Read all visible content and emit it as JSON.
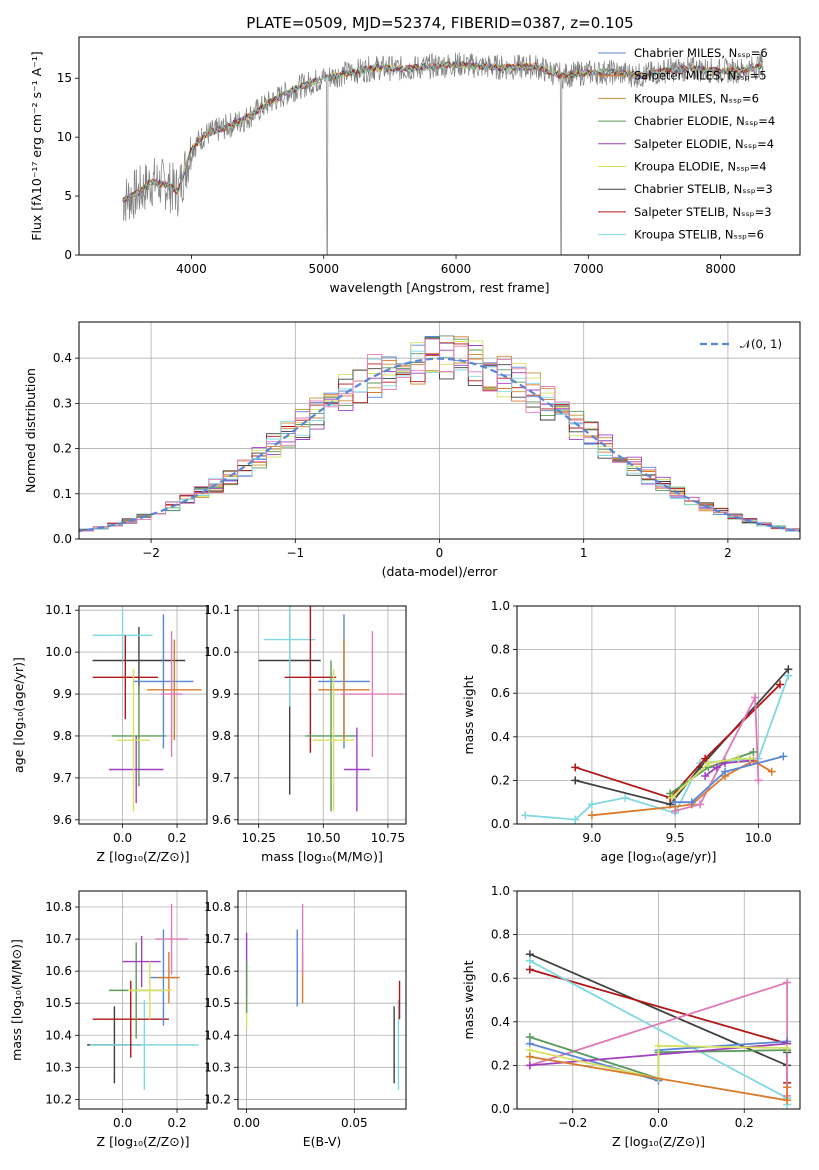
{
  "page_title": "PLATE=0509, MJD=52374, FIBERID=0387, z=0.105",
  "chart_data": [
    {
      "id": "spectrum",
      "type": "line",
      "title": "PLATE=0509, MJD=52374, FIBERID=0387, z=0.105",
      "xlabel": "wavelength [Angstrom, rest frame]",
      "ylabel": "Flux [fλ10⁻¹⁷ erg cm⁻² s⁻¹ A⁻¹]",
      "xlim": [
        3150,
        8600
      ],
      "ylim": [
        0,
        18.5
      ],
      "xticks": [
        4000,
        5000,
        6000,
        7000,
        8000
      ],
      "yticks": [
        0,
        5,
        10,
        15
      ],
      "grid": false,
      "legend_position": "upper right",
      "continuum": {
        "x": [
          3480,
          3600,
          3700,
          3800,
          3900,
          4000,
          4100,
          4200,
          4400,
          4600,
          4800,
          5000,
          5200,
          5400,
          5600,
          5800,
          6000,
          6200,
          6400,
          6600,
          6800,
          7000,
          7200,
          7400,
          7600,
          7800,
          8000,
          8200,
          8320
        ],
        "y": [
          4.6,
          5.3,
          6.2,
          6.0,
          5.4,
          9.0,
          10.2,
          10.6,
          11.5,
          13.0,
          14.2,
          15.0,
          15.5,
          15.9,
          15.8,
          16.0,
          16.2,
          16.0,
          15.9,
          16.0,
          15.2,
          15.5,
          15.5,
          15.2,
          15.7,
          15.8,
          15.6,
          15.7,
          16.2
        ]
      },
      "series": [
        {
          "name": "Chabrier MILES, Nₛₛₚ=6",
          "color": "#5a86d6"
        },
        {
          "name": "Salpeter MILES, Nₛₛₚ=5",
          "color": "#d97b2d"
        },
        {
          "name": "Kroupa MILES, Nₛₛₚ=6",
          "color": "#c8903a"
        },
        {
          "name": "Chabrier ELODIE, Nₛₛₚ=4",
          "color": "#5a9a5a"
        },
        {
          "name": "Salpeter ELODIE, Nₛₛₚ=4",
          "color": "#a040c0"
        },
        {
          "name": "Kroupa ELODIE, Nₛₛₚ=4",
          "color": "#d8e060"
        },
        {
          "name": "Chabrier STELIB, Nₛₛₚ=3",
          "color": "#404040"
        },
        {
          "name": "Salpeter STELIB, Nₛₛₚ=3",
          "color": "#b01818"
        },
        {
          "name": "Kroupa STELIB, Nₛₛₚ=6",
          "color": "#80d8e0"
        }
      ]
    },
    {
      "id": "residuals",
      "type": "line",
      "xlabel": "(data-model)/error",
      "ylabel": "Normed distribution",
      "xlim": [
        -2.5,
        2.5
      ],
      "ylim": [
        0,
        0.48
      ],
      "xticks": [
        -2,
        -1,
        0,
        1,
        2
      ],
      "yticks": [
        0.0,
        0.1,
        0.2,
        0.3,
        0.4
      ],
      "grid": true,
      "legend_position": "upper right",
      "gaussian_label": "𝒩(0, 1)",
      "gaussian_color": "#5a86d6"
    },
    {
      "id": "age_vs_Z",
      "type": "scatter",
      "xlabel": "Z [log₁₀(Z/Z⊙)]",
      "ylabel": "age  [log₁₀(age/yr)]",
      "xlim": [
        -0.16,
        0.31
      ],
      "ylim": [
        9.59,
        10.11
      ],
      "xticks": [
        0.0,
        0.2
      ],
      "xticklabels": [
        "0.0",
        "0.2"
      ],
      "yticks": [
        9.6,
        9.7,
        9.8,
        9.9,
        10.0,
        10.1
      ],
      "points": [
        {
          "x": 0.06,
          "y": 9.98,
          "xerr": 0.17,
          "yerr": 0.08,
          "color": "#404040"
        },
        {
          "x": 0.0,
          "y": 10.04,
          "xerr": 0.11,
          "yerr": 0.06,
          "color": "#80d8e0"
        },
        {
          "x": 0.01,
          "y": 9.94,
          "xerr": 0.12,
          "yerr": 0.1,
          "color": "#b01818"
        },
        {
          "x": 0.06,
          "y": 9.8,
          "xerr": 0.1,
          "yerr": 0.12,
          "color": "#5a9a5a"
        },
        {
          "x": 0.05,
          "y": 9.72,
          "xerr": 0.1,
          "yerr": 0.08,
          "color": "#a040c0"
        },
        {
          "x": 0.15,
          "y": 9.93,
          "xerr": 0.11,
          "yerr": 0.16,
          "color": "#5a86d6"
        },
        {
          "x": 0.19,
          "y": 9.91,
          "xerr": 0.1,
          "yerr": 0.12,
          "color": "#d97b2d"
        },
        {
          "x": 0.18,
          "y": 9.9,
          "xerr": 0.04,
          "yerr": 0.15,
          "color": "#e07ab8"
        },
        {
          "x": 0.04,
          "y": 9.79,
          "xerr": 0.06,
          "yerr": 0.17,
          "color": "#d8e060"
        }
      ]
    },
    {
      "id": "age_vs_mass",
      "type": "scatter",
      "xlabel": "mass [log₁₀(M/M⊙)]",
      "xlim": [
        10.17,
        10.82
      ],
      "ylim": [
        9.59,
        10.11
      ],
      "xticks": [
        10.25,
        10.5,
        10.75
      ],
      "xticklabels": [
        "10.25",
        "10.50",
        "10.75"
      ],
      "yticks": [
        9.6,
        9.7,
        9.8,
        9.9,
        10.0,
        10.1
      ],
      "points": [
        {
          "x": 10.37,
          "y": 9.98,
          "xerr": 0.12,
          "yerr": 0.32,
          "color": "#404040"
        },
        {
          "x": 10.37,
          "y": 10.03,
          "xerr": 0.1,
          "yerr": 0.16,
          "color": "#80d8e0"
        },
        {
          "x": 10.45,
          "y": 9.94,
          "xerr": 0.1,
          "yerr": 0.18,
          "color": "#b01818"
        },
        {
          "x": 10.53,
          "y": 9.8,
          "xerr": 0.1,
          "yerr": 0.18,
          "color": "#5a9a5a"
        },
        {
          "x": 10.63,
          "y": 9.72,
          "xerr": 0.05,
          "yerr": 0.1,
          "color": "#a040c0"
        },
        {
          "x": 10.58,
          "y": 9.93,
          "xerr": 0.1,
          "yerr": 0.16,
          "color": "#5a86d6"
        },
        {
          "x": 10.58,
          "y": 9.91,
          "xerr": 0.1,
          "yerr": 0.12,
          "color": "#d97b2d"
        },
        {
          "x": 10.69,
          "y": 9.9,
          "xerr": 0.12,
          "yerr": 0.15,
          "color": "#e07ab8"
        },
        {
          "x": 10.54,
          "y": 9.79,
          "xerr": 0.08,
          "yerr": 0.17,
          "color": "#d8e060"
        }
      ]
    },
    {
      "id": "mass_weight_vs_age",
      "type": "line",
      "xlabel": "age  [log₁₀(age/yr)]",
      "ylabel": "mass weight",
      "xlim": [
        8.55,
        10.25
      ],
      "ylim": [
        0,
        1.0
      ],
      "xticks": [
        9.0,
        9.5,
        10.0
      ],
      "yticks": [
        0.0,
        0.2,
        0.4,
        0.6,
        0.8,
        1.0
      ],
      "grid": true,
      "series": [
        {
          "color": "#80d8e0",
          "x": [
            8.6,
            8.9,
            9.0,
            9.2,
            9.5,
            9.65,
            9.8,
            10.0,
            10.18
          ],
          "y": [
            0.04,
            0.02,
            0.09,
            0.12,
            0.05,
            0.28,
            0.29,
            0.3,
            0.68
          ]
        },
        {
          "color": "#404040",
          "x": [
            8.9,
            9.47,
            9.65,
            10.18
          ],
          "y": [
            0.2,
            0.09,
            0.26,
            0.71
          ]
        },
        {
          "color": "#b01818",
          "x": [
            8.9,
            9.47,
            9.68,
            10.13
          ],
          "y": [
            0.26,
            0.12,
            0.3,
            0.64
          ]
        },
        {
          "color": "#e07ab8",
          "x": [
            9.5,
            9.65,
            9.98,
            10.0
          ],
          "y": [
            0.06,
            0.09,
            0.58,
            0.2
          ]
        },
        {
          "color": "#d97b2d",
          "x": [
            9.0,
            9.5,
            9.6,
            9.8,
            9.97,
            10.08
          ],
          "y": [
            0.04,
            0.08,
            0.09,
            0.22,
            0.29,
            0.24
          ]
        },
        {
          "color": "#5a86d6",
          "x": [
            9.5,
            9.6,
            9.8,
            10.15
          ],
          "y": [
            0.1,
            0.1,
            0.24,
            0.31
          ]
        },
        {
          "color": "#5a9a5a",
          "x": [
            9.47,
            9.7,
            9.97
          ],
          "y": [
            0.14,
            0.26,
            0.33
          ]
        },
        {
          "color": "#a040c0",
          "x": [
            9.68,
            9.75,
            9.8,
            9.95
          ],
          "y": [
            0.22,
            0.26,
            0.28,
            0.29
          ]
        },
        {
          "color": "#d8e060",
          "x": [
            9.48,
            9.7,
            9.88,
            9.95
          ],
          "y": [
            0.12,
            0.28,
            0.3,
            0.3
          ]
        }
      ]
    },
    {
      "id": "mass_vs_Z",
      "type": "scatter",
      "xlabel": "Z [log₁₀(Z/Z⊙)]",
      "ylabel": "mass [log₁₀(M/M⊙)]",
      "xlim": [
        -0.16,
        0.31
      ],
      "ylim": [
        10.17,
        10.85
      ],
      "xticks": [
        0.0,
        0.2
      ],
      "xticklabels": [
        "0.0",
        "0.2"
      ],
      "yticks": [
        10.2,
        10.3,
        10.4,
        10.5,
        10.6,
        10.7,
        10.8
      ],
      "points": [
        {
          "x": -0.03,
          "y": 10.37,
          "xerr": 0.1,
          "yerr": 0.12,
          "color": "#404040"
        },
        {
          "x": 0.08,
          "y": 10.37,
          "xerr": 0.2,
          "yerr": 0.14,
          "color": "#80d8e0"
        },
        {
          "x": 0.03,
          "y": 10.45,
          "xerr": 0.14,
          "yerr": 0.12,
          "color": "#b01818"
        },
        {
          "x": 0.05,
          "y": 10.54,
          "xerr": 0.1,
          "yerr": 0.15,
          "color": "#5a9a5a"
        },
        {
          "x": 0.07,
          "y": 10.63,
          "xerr": 0.07,
          "yerr": 0.08,
          "color": "#a040c0"
        },
        {
          "x": 0.15,
          "y": 10.58,
          "xerr": 0.05,
          "yerr": 0.15,
          "color": "#5a86d6"
        },
        {
          "x": 0.17,
          "y": 10.58,
          "xerr": 0.04,
          "yerr": 0.08,
          "color": "#d97b2d"
        },
        {
          "x": 0.18,
          "y": 10.7,
          "xerr": 0.06,
          "yerr": 0.11,
          "color": "#e07ab8"
        },
        {
          "x": 0.1,
          "y": 10.54,
          "xerr": 0.08,
          "yerr": 0.09,
          "color": "#d8e060"
        }
      ]
    },
    {
      "id": "mass_vs_ebv",
      "type": "scatter",
      "xlabel": "E(B-V)",
      "xlim": [
        -0.004,
        0.074
      ],
      "ylim": [
        10.17,
        10.85
      ],
      "xticks": [
        0.0,
        0.05
      ],
      "xticklabels": [
        "0.00",
        "0.05"
      ],
      "yticks": [
        10.2,
        10.3,
        10.4,
        10.5,
        10.6,
        10.7,
        10.8
      ],
      "points": [
        {
          "x": 0.0,
          "y": 10.62,
          "yerr": 0.1,
          "color": "#a040c0"
        },
        {
          "x": 0.0,
          "y": 10.52,
          "yerr": 0.1,
          "color": "#d8e060"
        },
        {
          "x": 0.0,
          "y": 10.55,
          "yerr": 0.08,
          "color": "#5a9a5a"
        },
        {
          "x": 0.0235,
          "y": 10.61,
          "yerr": 0.12,
          "color": "#5a86d6"
        },
        {
          "x": 0.026,
          "y": 10.58,
          "yerr": 0.08,
          "color": "#d97b2d"
        },
        {
          "x": 0.026,
          "y": 10.7,
          "yerr": 0.11,
          "color": "#e07ab8"
        },
        {
          "x": 0.0685,
          "y": 10.37,
          "yerr": 0.12,
          "color": "#404040"
        },
        {
          "x": 0.0705,
          "y": 10.37,
          "yerr": 0.14,
          "color": "#80d8e0"
        },
        {
          "x": 0.071,
          "y": 10.51,
          "yerr": 0.06,
          "color": "#b01818"
        }
      ]
    },
    {
      "id": "mass_weight_vs_Z",
      "type": "line",
      "xlabel": "Z [log₁₀(Z/Z⊙)]",
      "ylabel": "mass weight",
      "xlim": [
        -0.33,
        0.33
      ],
      "ylim": [
        0,
        1.0
      ],
      "xticks": [
        -0.2,
        0.0,
        0.2
      ],
      "xticklabels": [
        "−0.2",
        "0.0",
        "0.2"
      ],
      "yticks": [
        0.0,
        0.2,
        0.4,
        0.6,
        0.8,
        1.0
      ],
      "grid": true,
      "series": [
        {
          "color": "#404040",
          "x": [
            -0.3,
            0.3,
            0.3
          ],
          "y": [
            0.71,
            0.2,
            0.26
          ]
        },
        {
          "color": "#b01818",
          "x": [
            -0.3,
            0.3,
            0.3
          ],
          "y": [
            0.64,
            0.3,
            0.12
          ]
        },
        {
          "color": "#80d8e0",
          "x": [
            -0.3,
            0.3,
            0.3
          ],
          "y": [
            0.68,
            0.05,
            0.02
          ]
        },
        {
          "color": "#e07ab8",
          "x": [
            -0.3,
            0.3,
            0.3
          ],
          "y": [
            0.2,
            0.58,
            0.06
          ]
        },
        {
          "color": "#5a9a5a",
          "x": [
            -0.3,
            0.0,
            0.0,
            0.3
          ],
          "y": [
            0.33,
            0.14,
            0.26,
            0.27
          ]
        },
        {
          "color": "#5a86d6",
          "x": [
            -0.3,
            0.0,
            0.0,
            0.3
          ],
          "y": [
            0.3,
            0.13,
            0.27,
            0.31
          ]
        },
        {
          "color": "#a040c0",
          "x": [
            -0.3,
            0.3
          ],
          "y": [
            0.2,
            0.3
          ]
        },
        {
          "color": "#d8e060",
          "x": [
            -0.3,
            0.0,
            0.0,
            0.3
          ],
          "y": [
            0.27,
            0.14,
            0.29,
            0.28
          ]
        },
        {
          "color": "#d97b2d",
          "x": [
            -0.3,
            0.3,
            0.3
          ],
          "y": [
            0.24,
            0.04,
            0.1
          ]
        }
      ]
    }
  ]
}
